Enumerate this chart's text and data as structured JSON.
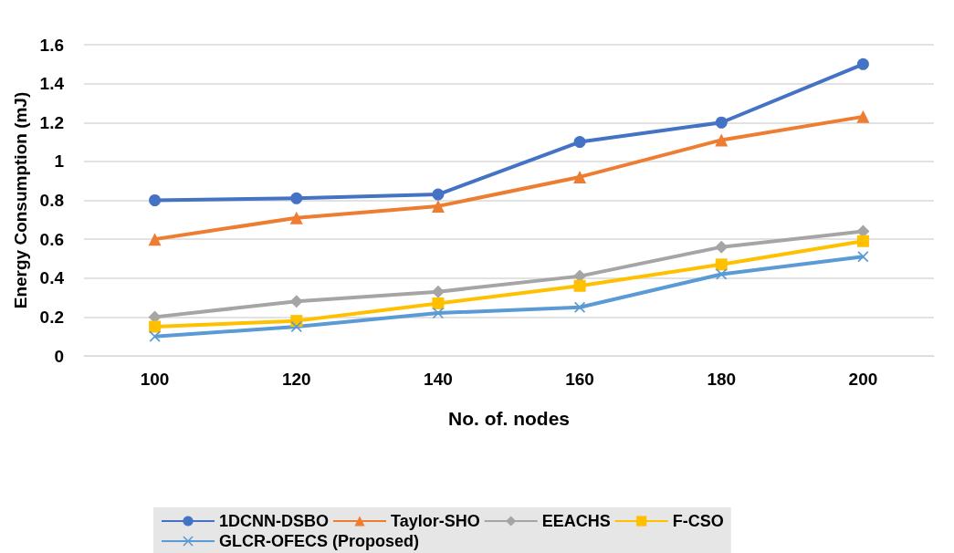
{
  "chart_data": {
    "type": "line",
    "xlabel": "No. of. nodes",
    "ylabel": "Energy Consumption (mJ)",
    "categories": [
      "100",
      "120",
      "140",
      "160",
      "180",
      "200"
    ],
    "ylim": [
      0,
      1.6
    ],
    "yticks": [
      0,
      0.2,
      0.4,
      0.6,
      0.8,
      1,
      1.2,
      1.4,
      1.6
    ],
    "grid": "y",
    "legend": "bottom",
    "series": [
      {
        "name": "1DCNN-DSBO",
        "color": "#4472c4",
        "marker": "circle",
        "values": [
          0.8,
          0.81,
          0.83,
          1.1,
          1.2,
          1.5
        ]
      },
      {
        "name": "Taylor-SHO",
        "color": "#ed7d31",
        "marker": "triangle",
        "values": [
          0.6,
          0.71,
          0.77,
          0.92,
          1.11,
          1.23
        ]
      },
      {
        "name": "EEACHS",
        "color": "#a5a5a5",
        "marker": "diamond",
        "values": [
          0.2,
          0.28,
          0.33,
          0.41,
          0.56,
          0.64
        ]
      },
      {
        "name": "F-CSO",
        "color": "#ffc000",
        "marker": "square",
        "values": [
          0.15,
          0.18,
          0.27,
          0.36,
          0.47,
          0.59
        ]
      },
      {
        "name": "GLCR-OFECS (Proposed)",
        "color": "#5b9bd5",
        "marker": "cross",
        "values": [
          0.1,
          0.15,
          0.22,
          0.25,
          0.42,
          0.51
        ]
      }
    ]
  }
}
